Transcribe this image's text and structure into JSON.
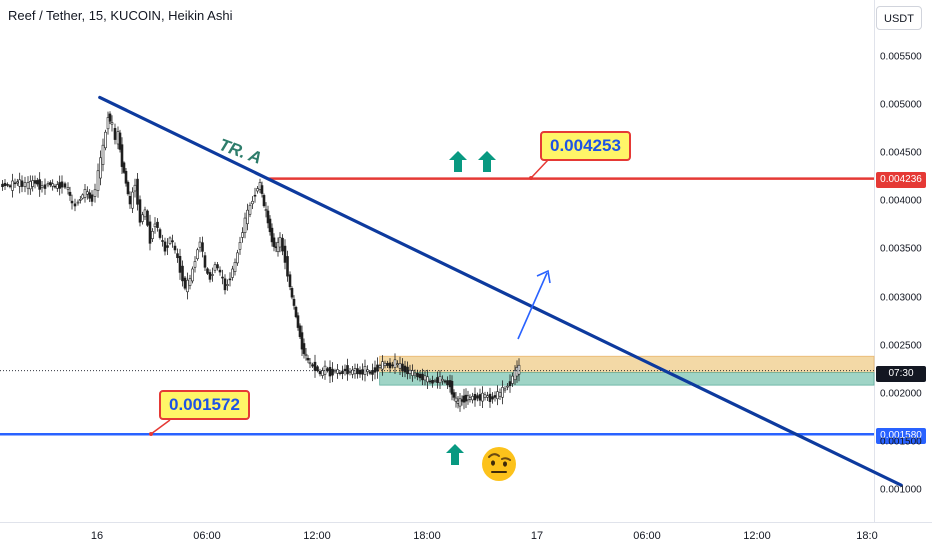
{
  "header": {
    "title": "Reef / Tether, 15, KUCOIN, Heikin Ashi",
    "currency_button": "USDT"
  },
  "annotations": {
    "trend_label": "TR. A",
    "resistance_callout": "0.004253",
    "support_callout": "0.001572"
  },
  "price_tags": {
    "resistance": "0.004236",
    "current_price": "07:30",
    "support": "0.001580"
  },
  "colors": {
    "bullish": "#26a69a",
    "bearish": "#ef5350",
    "candle_dark": "#1e1e1e",
    "trendline": "#0d3a9e",
    "resistance": "#e53935",
    "support": "#2962ff",
    "zone_top": "#f3d9a6",
    "zone_bottom": "#9fd4c6",
    "arrow": "#089981"
  },
  "chart_data": {
    "type": "candlestick",
    "x_tick_labels": [
      "16",
      "06:00",
      "12:00",
      "18:00",
      "17",
      "06:00",
      "12:00",
      "18:0"
    ],
    "y_tick_labels": [
      "0.005500",
      "0.005000",
      "0.004500",
      "0.004000",
      "0.003500",
      "0.003000",
      "0.002500",
      "0.002000",
      "0.001500",
      "0.001000"
    ],
    "ylim": [
      0.00092,
      0.0059
    ],
    "levels": {
      "resistance": 0.004236,
      "support": 0.00158,
      "current": 0.00224
    },
    "trendline": {
      "from": {
        "time": "16 00:09",
        "price": 0.00508
      },
      "to": {
        "time": "17 19:52",
        "price": 0.00105
      }
    },
    "zone": {
      "from": "16 15:25",
      "top": 0.00239,
      "mid": 0.00222,
      "bottom": 0.00209
    },
    "close_path": [
      [
        0,
        0.00416
      ],
      [
        5,
        0.00418
      ],
      [
        10,
        0.00415
      ],
      [
        15,
        0.0042
      ],
      [
        22,
        0.00418
      ],
      [
        28,
        0.00416
      ],
      [
        35,
        0.00421
      ],
      [
        42,
        0.00414
      ],
      [
        48,
        0.00419
      ],
      [
        55,
        0.00415
      ],
      [
        62,
        0.00418
      ],
      [
        68,
        0.00412
      ],
      [
        72,
        0.00395
      ],
      [
        78,
        0.004
      ],
      [
        85,
        0.0041
      ],
      [
        92,
        0.00402
      ],
      [
        98,
        0.00428
      ],
      [
        103,
        0.00455
      ],
      [
        108,
        0.0049
      ],
      [
        112,
        0.00478
      ],
      [
        115,
        0.00462
      ],
      [
        118,
        0.0047
      ],
      [
        122,
        0.0044
      ],
      [
        126,
        0.0042
      ],
      [
        130,
        0.00395
      ],
      [
        135,
        0.0042
      ],
      [
        140,
        0.0038
      ],
      [
        145,
        0.0039
      ],
      [
        150,
        0.0036
      ],
      [
        155,
        0.0038
      ],
      [
        160,
        0.00362
      ],
      [
        165,
        0.0035
      ],
      [
        170,
        0.00362
      ],
      [
        175,
        0.00348
      ],
      [
        180,
        0.0033
      ],
      [
        185,
        0.0031
      ],
      [
        190,
        0.00318
      ],
      [
        195,
        0.0034
      ],
      [
        200,
        0.0036
      ],
      [
        205,
        0.0033
      ],
      [
        210,
        0.0032
      ],
      [
        215,
        0.00335
      ],
      [
        220,
        0.00325
      ],
      [
        225,
        0.0031
      ],
      [
        230,
        0.00322
      ],
      [
        235,
        0.00335
      ],
      [
        240,
        0.0036
      ],
      [
        245,
        0.0038
      ],
      [
        250,
        0.00395
      ],
      [
        255,
        0.0041
      ],
      [
        260,
        0.00418
      ],
      [
        264,
        0.00395
      ],
      [
        268,
        0.0038
      ],
      [
        272,
        0.0036
      ],
      [
        276,
        0.0035
      ],
      [
        280,
        0.0036
      ],
      [
        285,
        0.0034
      ],
      [
        290,
        0.0031
      ],
      [
        294,
        0.0029
      ],
      [
        298,
        0.0027
      ],
      [
        302,
        0.0025
      ],
      [
        306,
        0.00238
      ],
      [
        310,
        0.0023
      ],
      [
        315,
        0.00228
      ],
      [
        320,
        0.0022
      ],
      [
        325,
        0.00226
      ],
      [
        330,
        0.00222
      ],
      [
        335,
        0.00224
      ],
      [
        340,
        0.00221
      ],
      [
        345,
        0.00226
      ],
      [
        350,
        0.00222
      ],
      [
        355,
        0.00224
      ],
      [
        360,
        0.00222
      ],
      [
        365,
        0.00225
      ],
      [
        370,
        0.00221
      ],
      [
        375,
        0.00226
      ],
      [
        380,
        0.00229
      ],
      [
        385,
        0.00231
      ],
      [
        390,
        0.00229
      ],
      [
        395,
        0.00232
      ],
      [
        400,
        0.00228
      ],
      [
        405,
        0.00225
      ],
      [
        410,
        0.00222
      ],
      [
        415,
        0.0022
      ],
      [
        420,
        0.00218
      ],
      [
        425,
        0.00216
      ],
      [
        430,
        0.00212
      ],
      [
        435,
        0.00214
      ],
      [
        440,
        0.00215
      ],
      [
        445,
        0.00212
      ],
      [
        450,
        0.0021
      ],
      [
        454,
        0.00195
      ],
      [
        458,
        0.0019
      ],
      [
        462,
        0.00194
      ],
      [
        466,
        0.00196
      ],
      [
        470,
        0.00195
      ],
      [
        475,
        0.00197
      ],
      [
        480,
        0.00196
      ],
      [
        485,
        0.00198
      ],
      [
        490,
        0.00195
      ],
      [
        495,
        0.00198
      ],
      [
        500,
        0.002
      ],
      [
        505,
        0.00206
      ],
      [
        510,
        0.00212
      ],
      [
        515,
        0.00222
      ],
      [
        519,
        0.00226
      ]
    ]
  }
}
